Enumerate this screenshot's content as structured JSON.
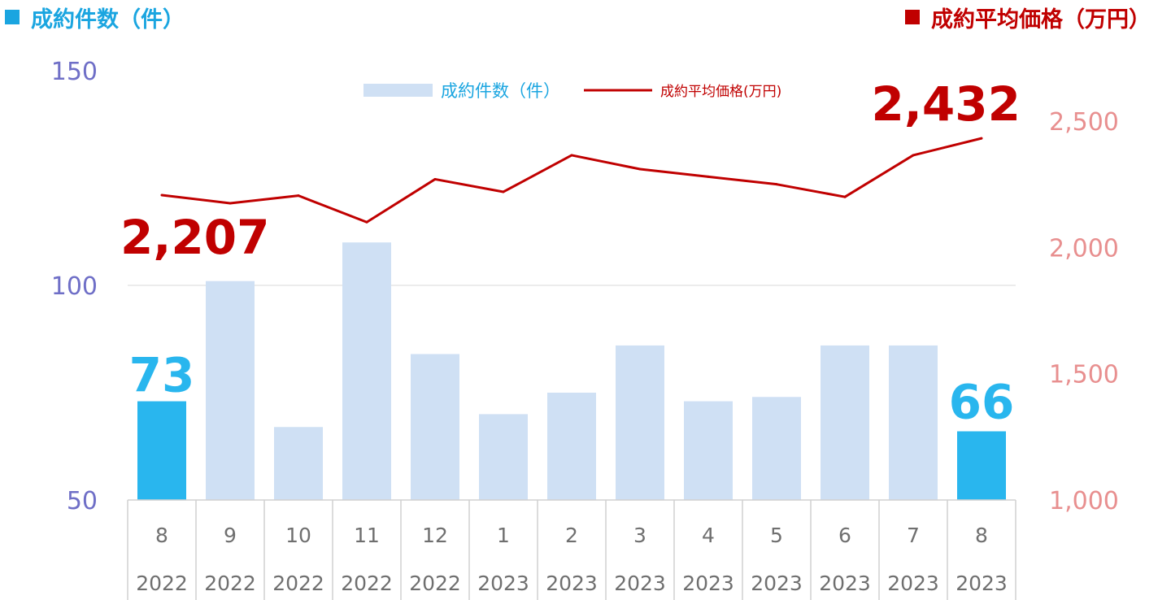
{
  "header": {
    "left_title": "成約件数（件）",
    "right_title": "成約平均価格（万円）"
  },
  "colors": {
    "bar": "#cfe0f4",
    "bar_highlight": "#29b6ee",
    "line": "#c00000",
    "left_axis_text": "#6f6fc7",
    "right_axis_text": "#e88f8f",
    "left_title": "#1aa5e0",
    "right_title": "#c00000"
  },
  "chart_data": {
    "type": "bar",
    "categories": [
      "8",
      "9",
      "10",
      "11",
      "12",
      "1",
      "2",
      "3",
      "4",
      "5",
      "6",
      "7",
      "8"
    ],
    "years": [
      "2022",
      "2022",
      "2022",
      "2022",
      "2022",
      "2023",
      "2023",
      "2023",
      "2023",
      "2023",
      "2023",
      "2023",
      "2023"
    ],
    "series": [
      {
        "name": "成約件数（件）",
        "type": "bar",
        "axis": "left",
        "values": [
          73,
          101,
          67,
          110,
          84,
          70,
          75,
          86,
          73,
          74,
          86,
          86,
          66
        ],
        "highlighted": [
          0,
          12
        ]
      },
      {
        "name": "成約平均価格(万円)",
        "type": "line",
        "axis": "right",
        "values": [
          2207,
          2175,
          2205,
          2100,
          2270,
          2220,
          2365,
          2310,
          2280,
          2250,
          2200,
          2365,
          2432
        ]
      }
    ],
    "left_axis": {
      "ylim": [
        50,
        150
      ],
      "ticks": [
        "50",
        "100",
        "150"
      ]
    },
    "right_axis": {
      "ylim": [
        1000,
        2500
      ],
      "ticks": [
        "1,000",
        "1,500",
        "2,000",
        "2,500"
      ]
    },
    "annotations": {
      "first_bar": "73",
      "last_bar": "66",
      "first_price": "2,207",
      "last_price": "2,432"
    },
    "legend_position": "top-center",
    "grid": "horizontal"
  }
}
